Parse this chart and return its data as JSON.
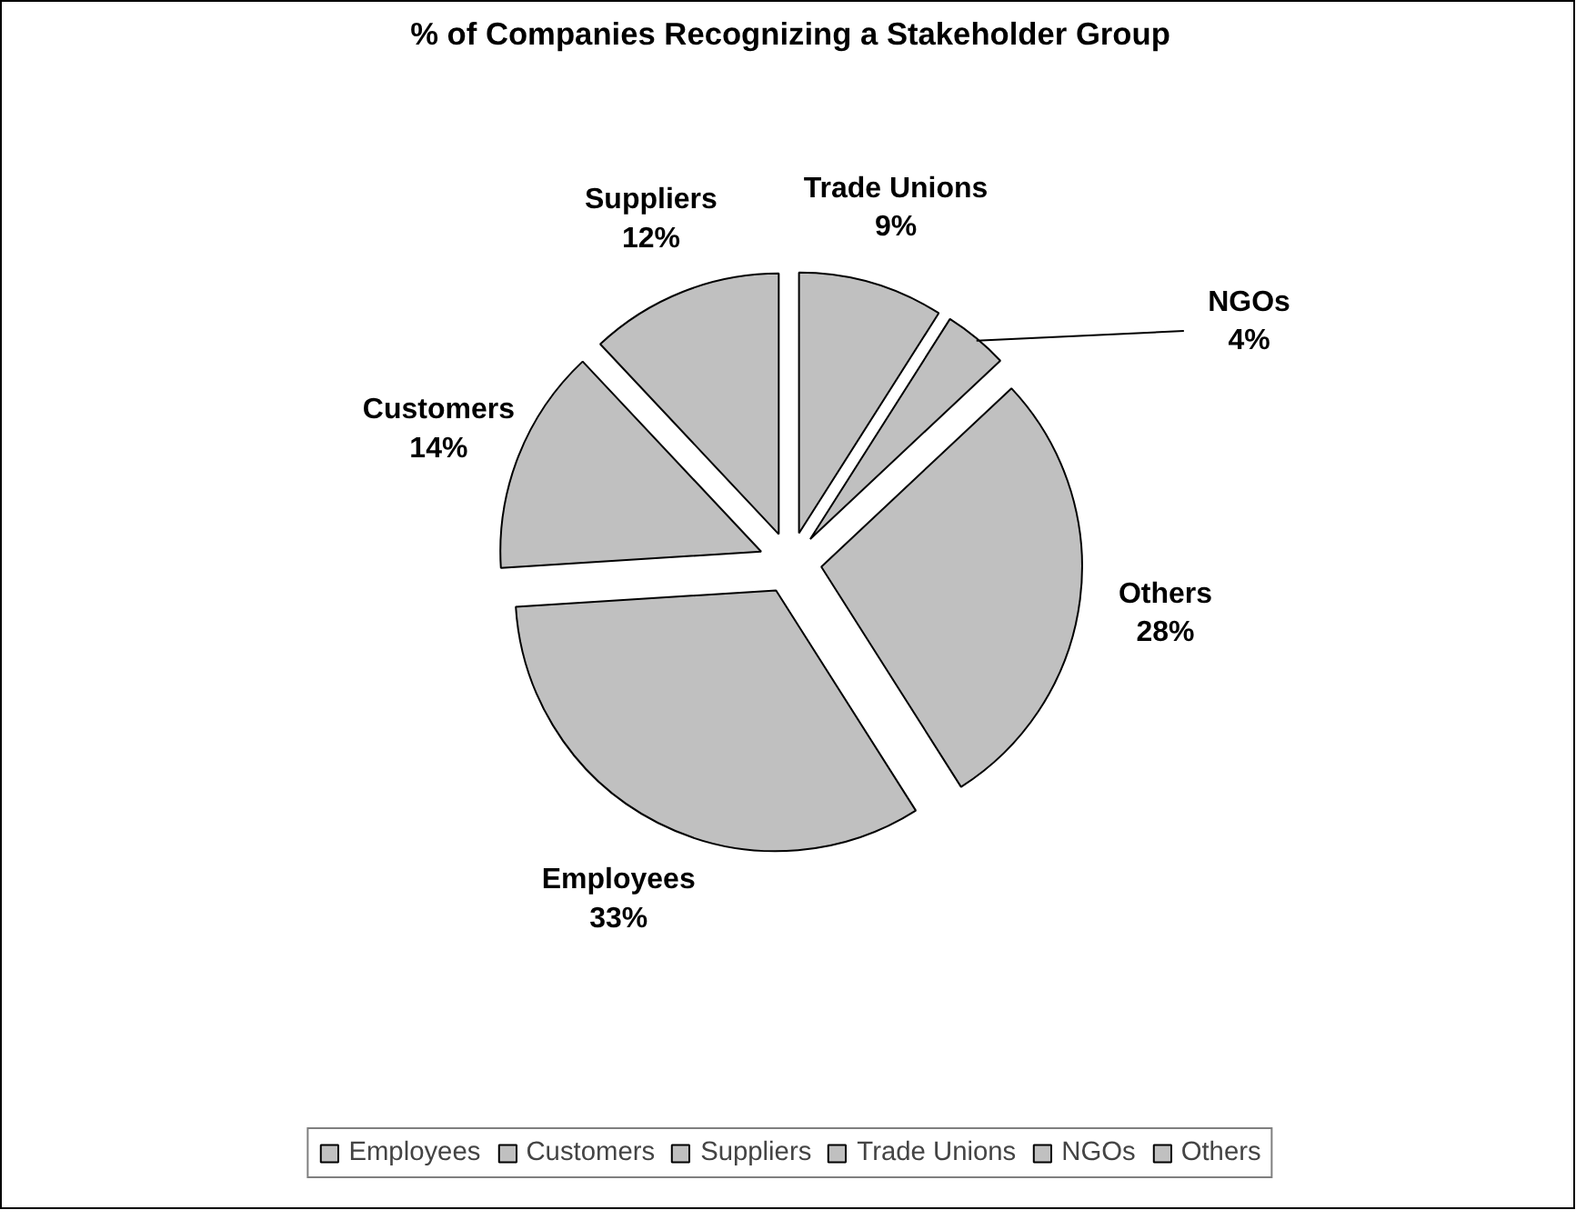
{
  "chart_data": {
    "type": "pie",
    "title": "% of Companies Recognizing a Stakeholder Group",
    "categories": [
      "Employees",
      "Customers",
      "Suppliers",
      "Trade Unions",
      "NGOs",
      "Others"
    ],
    "values": [
      33,
      14,
      12,
      9,
      4,
      28
    ],
    "value_labels": [
      "33%",
      "14%",
      "12%",
      "9%",
      "4%",
      "28%"
    ],
    "colors": [
      "#c0c0c0",
      "#c0c0c0",
      "#c0c0c0",
      "#c0c0c0",
      "#c0c0c0",
      "#c0c0c0"
    ],
    "legend": "bottom"
  }
}
